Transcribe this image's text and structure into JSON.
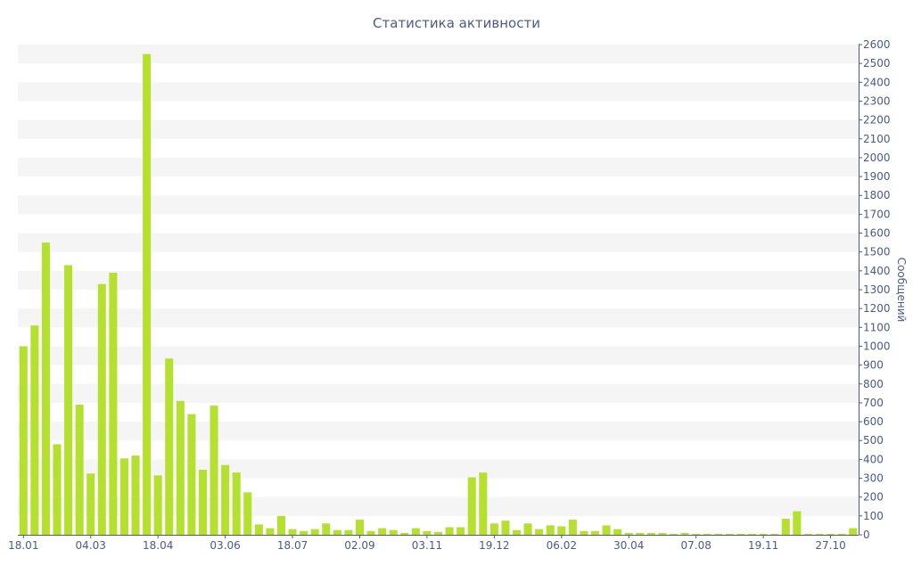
{
  "chart_data": {
    "type": "bar",
    "title": "Статистика активности",
    "ylabel": "Сообщений",
    "xlabel": "",
    "ylim": [
      0,
      2600
    ],
    "y_ticks": [
      0,
      100,
      200,
      300,
      400,
      500,
      600,
      700,
      800,
      900,
      1000,
      1100,
      1200,
      1300,
      1400,
      1500,
      1600,
      1700,
      1800,
      1900,
      2000,
      2100,
      2200,
      2300,
      2400,
      2500,
      2600
    ],
    "y_axis_side": "right",
    "grid": "alternating horizontal bands",
    "x_tick_labels": [
      {
        "index": 0,
        "label": "18.01"
      },
      {
        "index": 6,
        "label": "04.03"
      },
      {
        "index": 12,
        "label": "18.04"
      },
      {
        "index": 18,
        "label": "03.06"
      },
      {
        "index": 24,
        "label": "18.07"
      },
      {
        "index": 30,
        "label": "02.09"
      },
      {
        "index": 36,
        "label": "03.11"
      },
      {
        "index": 42,
        "label": "19.12"
      },
      {
        "index": 48,
        "label": "06.02"
      },
      {
        "index": 54,
        "label": "30.04"
      },
      {
        "index": 60,
        "label": "07.08"
      },
      {
        "index": 66,
        "label": "19.11"
      },
      {
        "index": 72,
        "label": "27.10"
      }
    ],
    "values": [
      1000,
      1110,
      1550,
      480,
      1430,
      690,
      325,
      1330,
      1390,
      405,
      420,
      2550,
      315,
      935,
      710,
      640,
      345,
      685,
      370,
      330,
      225,
      55,
      35,
      100,
      30,
      20,
      30,
      60,
      25,
      25,
      80,
      20,
      35,
      25,
      10,
      35,
      20,
      15,
      40,
      40,
      305,
      330,
      60,
      75,
      25,
      60,
      30,
      50,
      45,
      80,
      20,
      20,
      50,
      30,
      10,
      10,
      10,
      10,
      5,
      10,
      5,
      5,
      5,
      5,
      5,
      5,
      5,
      5,
      85,
      125,
      5,
      5,
      5,
      5,
      35
    ],
    "colors": {
      "bar": "#b5e02f",
      "text": "#4a5a8c",
      "band": "#f5f5f5",
      "axis": "#4a5a8c"
    }
  }
}
